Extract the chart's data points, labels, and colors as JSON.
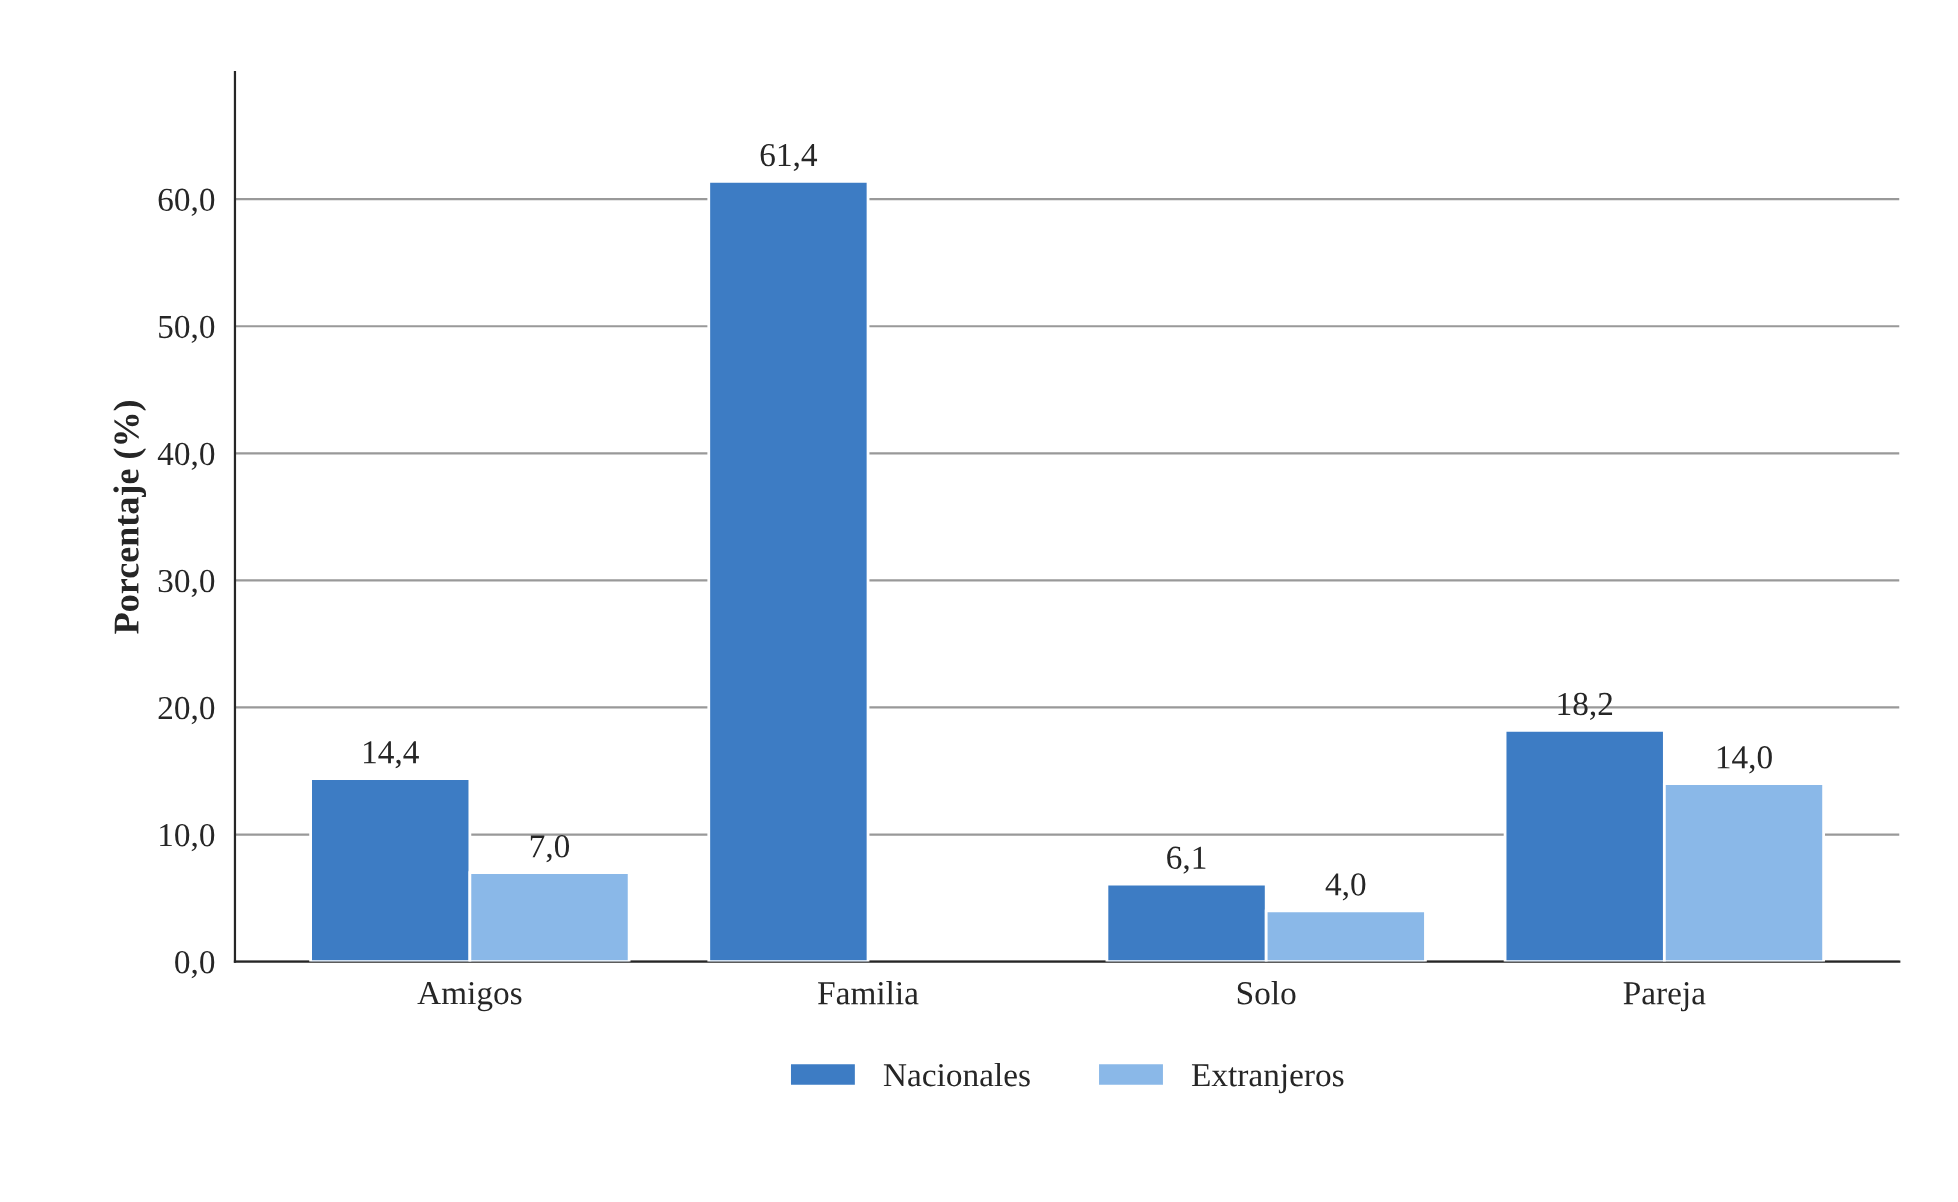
{
  "chart_data": {
    "type": "bar",
    "ylabel": "Porcentaje (%)",
    "categories": [
      "Amigos",
      "Familia",
      "Solo",
      "Pareja"
    ],
    "series": [
      {
        "name": "Nacionales",
        "color": "#3d7cc4",
        "values": [
          14.4,
          61.4,
          6.1,
          18.2
        ],
        "value_labels": [
          "14,4",
          "61,4",
          "6,1",
          "18,2"
        ]
      },
      {
        "name": "Extranjeros",
        "color": "#8ab8e8",
        "values": [
          7.0,
          null,
          4.0,
          14.0
        ],
        "value_labels": [
          "7,0",
          null,
          "4,0",
          "14,0"
        ]
      }
    ],
    "ylim": [
      0,
      70
    ],
    "yticks": [
      {
        "value": 0,
        "label": "0,0"
      },
      {
        "value": 10,
        "label": "10,0"
      },
      {
        "value": 20,
        "label": "20,0"
      },
      {
        "value": 30,
        "label": "30,0"
      },
      {
        "value": 40,
        "label": "40,0"
      },
      {
        "value": 50,
        "label": "50,0"
      },
      {
        "value": 60,
        "label": "60,0"
      }
    ],
    "grid": "y",
    "legend": "bottom"
  }
}
